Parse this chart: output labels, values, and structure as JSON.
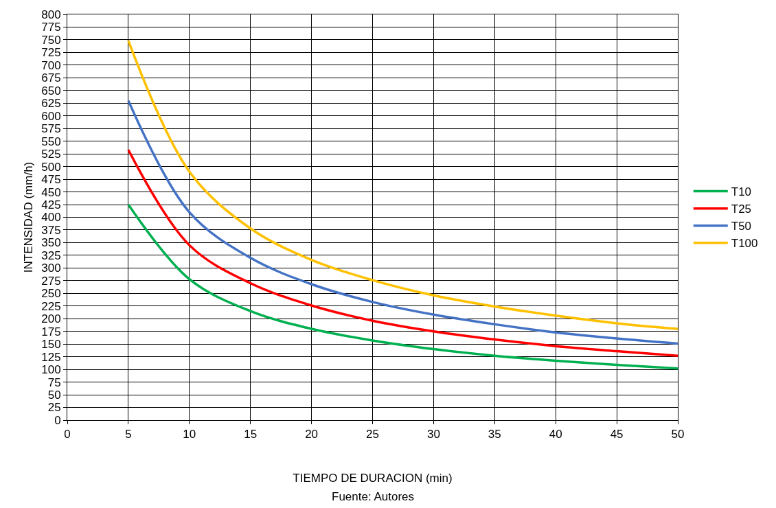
{
  "chart_data": {
    "type": "line",
    "xlabel": "TIEMPO DE DURACION (min)",
    "ylabel": "INTENSIDAD (mm/h)",
    "annotations": [
      "Fuente: Autores"
    ],
    "x": [
      5,
      10,
      15,
      20,
      25,
      30,
      35,
      40,
      45,
      50
    ],
    "series": [
      {
        "name": "T10",
        "color": "#00b050",
        "values": [
          425,
          278,
          215,
          180,
          157,
          140,
          127,
          117,
          109,
          102
        ]
      },
      {
        "name": "T25",
        "color": "#ff0000",
        "values": [
          533,
          345,
          270,
          226,
          196,
          175,
          159,
          146,
          136,
          127
        ]
      },
      {
        "name": "T50",
        "color": "#4472c4",
        "values": [
          630,
          410,
          320,
          268,
          233,
          208,
          189,
          173,
          161,
          151
        ]
      },
      {
        "name": "T100",
        "color": "#ffc000",
        "values": [
          748,
          490,
          378,
          316,
          276,
          246,
          224,
          206,
          191,
          180
        ]
      }
    ],
    "xlim": [
      0,
      50
    ],
    "xticks": [
      0,
      5,
      10,
      15,
      20,
      25,
      30,
      35,
      40,
      45,
      50
    ],
    "ylim": [
      0,
      800
    ],
    "yticks": [
      0,
      25,
      50,
      75,
      100,
      125,
      150,
      175,
      200,
      225,
      250,
      275,
      300,
      325,
      350,
      375,
      400,
      425,
      450,
      475,
      500,
      525,
      550,
      575,
      600,
      625,
      650,
      675,
      700,
      725,
      750,
      775,
      800
    ],
    "grid": true,
    "legend": "right",
    "marker": "none",
    "line_style": "solid"
  }
}
